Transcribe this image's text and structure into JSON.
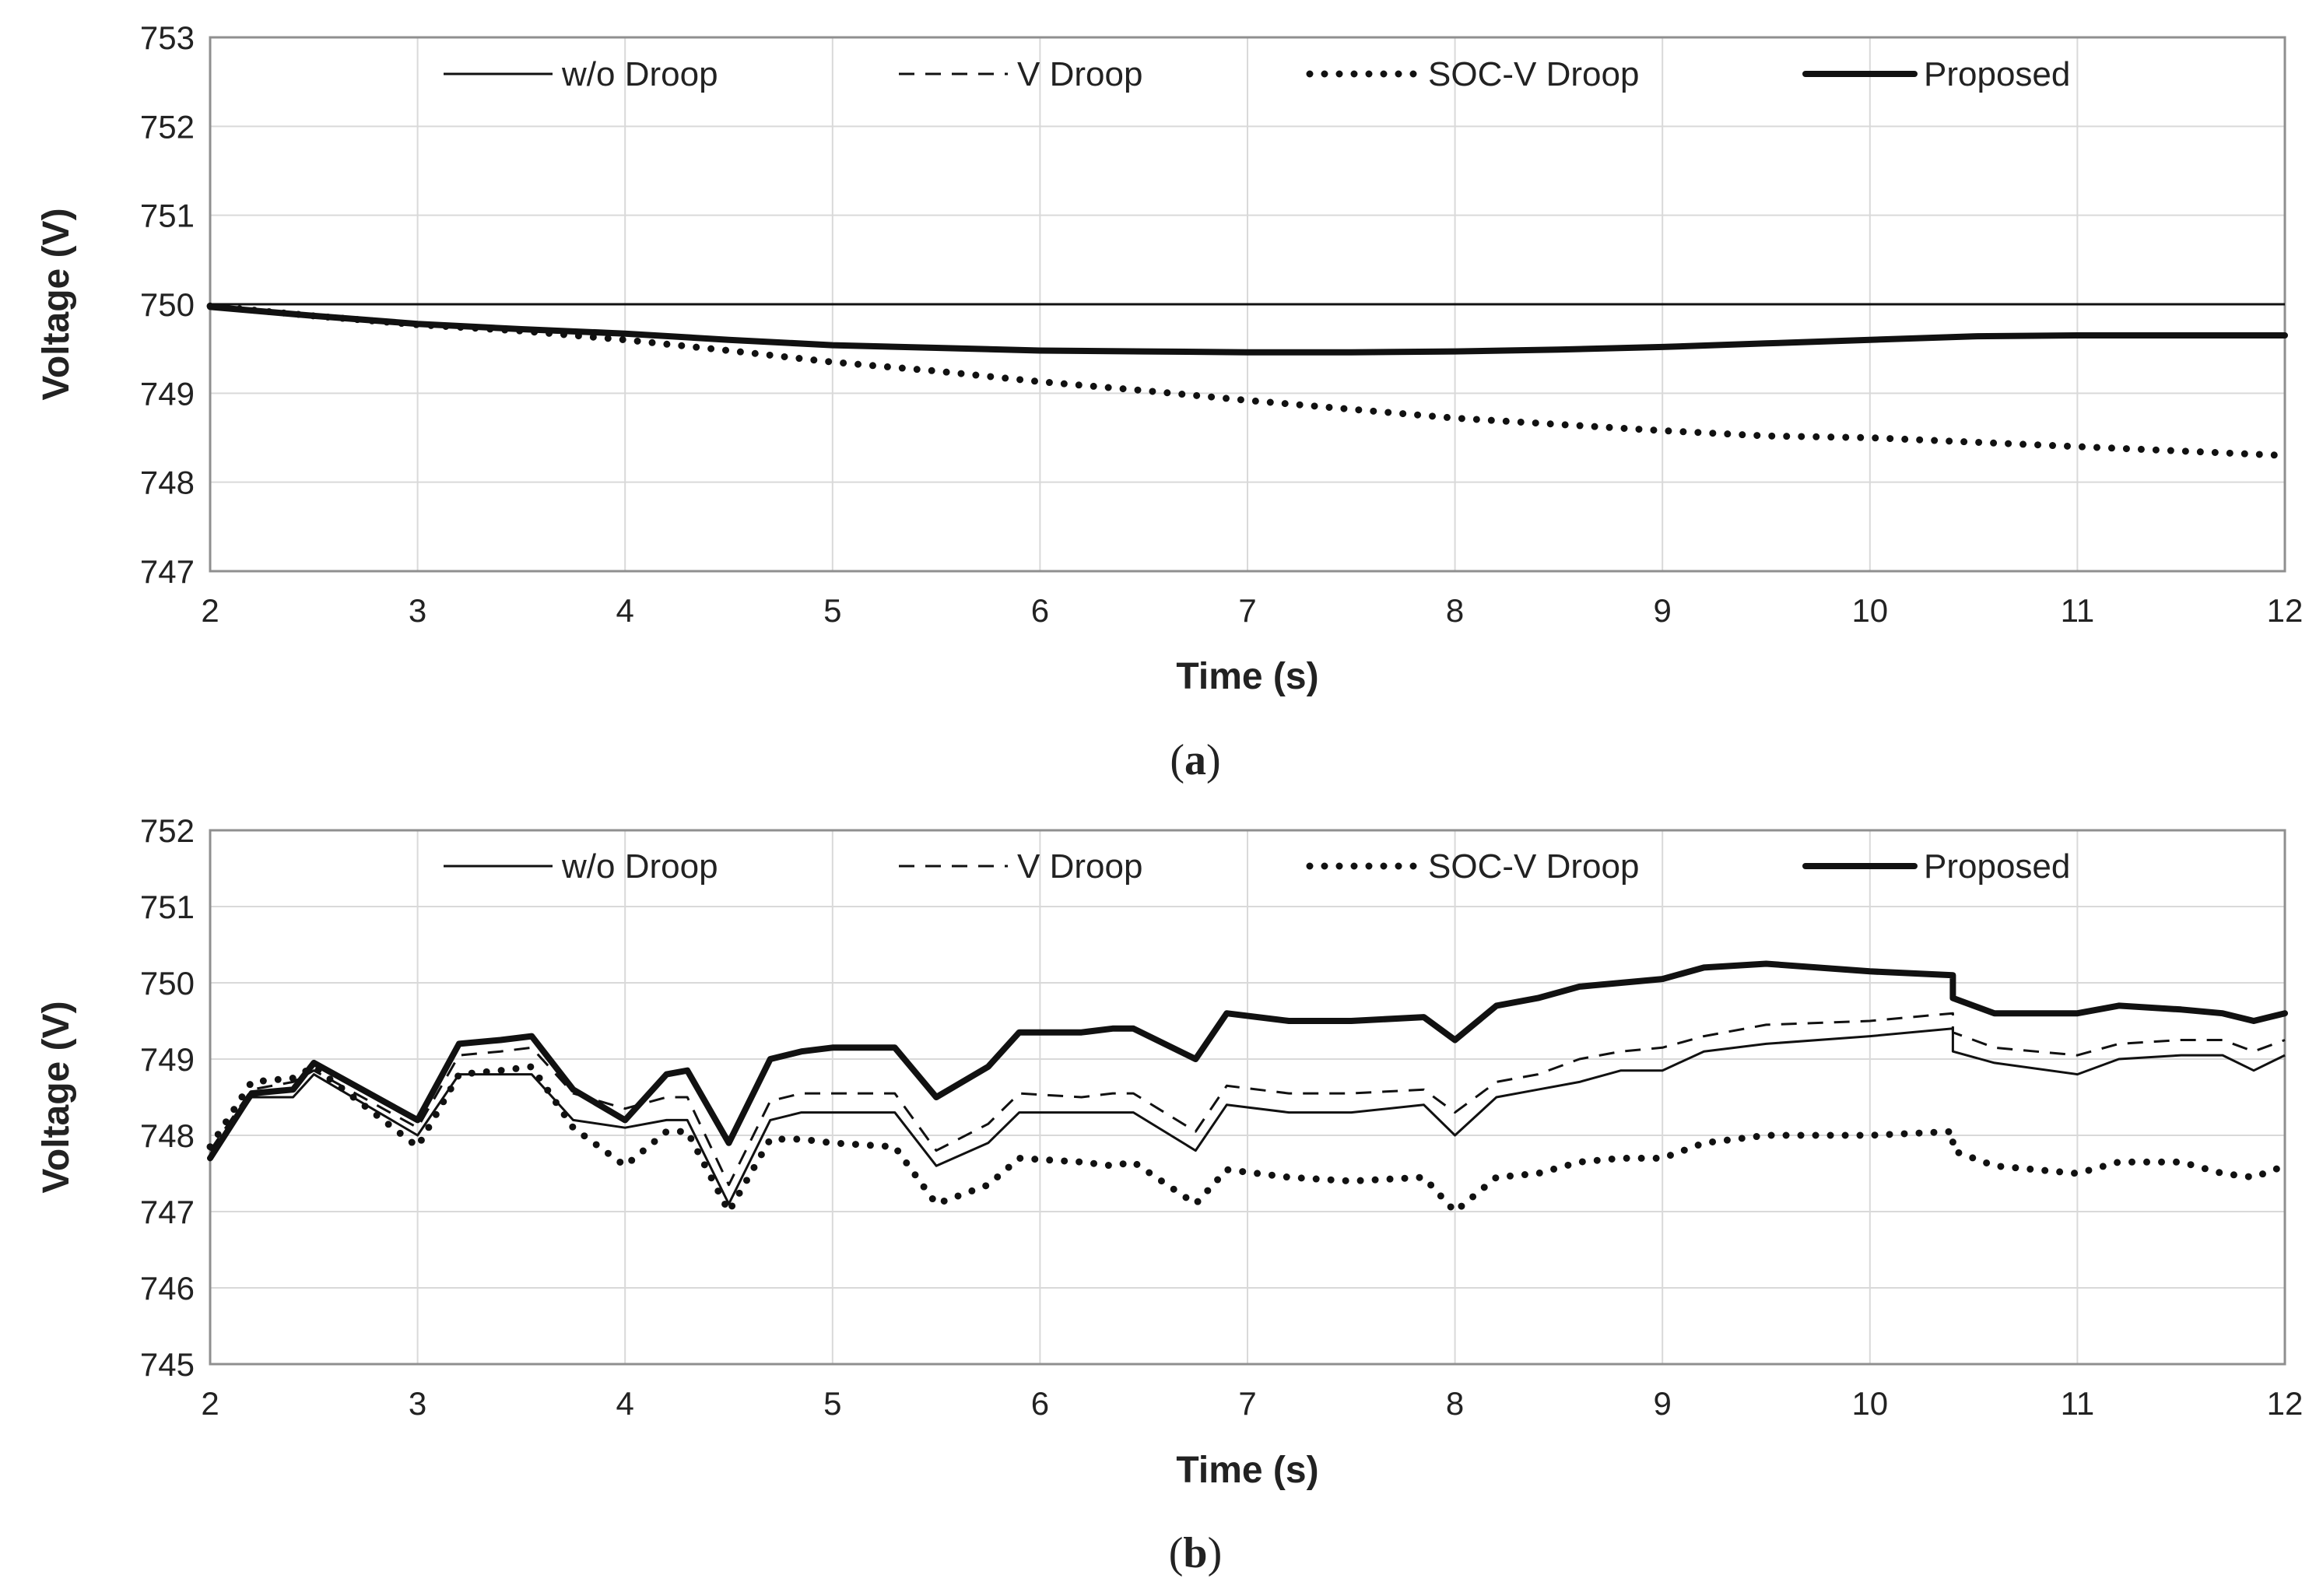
{
  "chart_data": [
    {
      "type": "line",
      "caption_letter": "a",
      "xlabel": "Time (s)",
      "ylabel": "Voltage (V)",
      "xlim": [
        2,
        12
      ],
      "ylim": [
        747,
        753
      ],
      "xticks": [
        "2",
        "3",
        "4",
        "5",
        "6",
        "7",
        "8",
        "9",
        "10",
        "11",
        "12"
      ],
      "yticks": [
        "747",
        "748",
        "749",
        "750",
        "751",
        "752",
        "753"
      ],
      "grid": true,
      "legend_position": "top",
      "series": [
        {
          "name": "w/o Droop",
          "style": "thin",
          "x": [
            2,
            12
          ],
          "y": [
            750.0,
            750.0
          ]
        },
        {
          "name": "V Droop",
          "style": "dashed",
          "x": [
            2,
            2.5,
            3,
            3.5,
            4,
            4.5,
            5,
            5.5,
            6,
            6.5,
            7,
            7.5,
            8,
            8.5,
            9,
            9.5,
            10,
            10.5,
            11,
            11.5,
            12
          ],
          "y": [
            749.97,
            749.87,
            749.78,
            749.72,
            749.67,
            749.6,
            749.54,
            749.51,
            749.48,
            749.47,
            749.46,
            749.46,
            749.47,
            749.49,
            749.52,
            749.56,
            749.6,
            749.64,
            749.65,
            749.65,
            749.65
          ]
        },
        {
          "name": "SOC-V Droop",
          "style": "dotted",
          "x": [
            2,
            2.5,
            3,
            3.5,
            4,
            4.5,
            5,
            5.5,
            6,
            6.5,
            7,
            7.5,
            8,
            8.5,
            9,
            9.5,
            10,
            10.5,
            11,
            11.5,
            12
          ],
          "y": [
            749.98,
            749.87,
            749.77,
            749.7,
            749.6,
            749.48,
            749.35,
            749.25,
            749.13,
            749.03,
            748.92,
            748.82,
            748.72,
            748.65,
            748.58,
            748.52,
            748.5,
            748.45,
            748.4,
            748.35,
            748.3
          ]
        },
        {
          "name": "Proposed",
          "style": "thick",
          "x": [
            2,
            2.5,
            3,
            3.5,
            4,
            4.5,
            5,
            5.5,
            6,
            6.5,
            7,
            7.5,
            8,
            8.5,
            9,
            9.5,
            10,
            10.5,
            11,
            11.5,
            12
          ],
          "y": [
            749.97,
            749.87,
            749.78,
            749.72,
            749.67,
            749.6,
            749.54,
            749.51,
            749.48,
            749.47,
            749.46,
            749.46,
            749.47,
            749.49,
            749.52,
            749.56,
            749.6,
            749.64,
            749.65,
            749.65,
            749.65
          ]
        }
      ]
    },
    {
      "type": "line",
      "caption_letter": "b",
      "xlabel": "Time (s)",
      "ylabel": "Voltage (V)",
      "xlim": [
        2,
        12
      ],
      "ylim": [
        745,
        752
      ],
      "xticks": [
        "2",
        "3",
        "4",
        "5",
        "6",
        "7",
        "8",
        "9",
        "10",
        "11",
        "12"
      ],
      "yticks": [
        "745",
        "746",
        "747",
        "748",
        "749",
        "750",
        "751",
        "752"
      ],
      "grid": true,
      "legend_position": "top",
      "series": [
        {
          "name": "w/o Droop",
          "style": "thin",
          "x": [
            2,
            2.2,
            2.4,
            2.5,
            3,
            3.2,
            3.4,
            3.55,
            3.75,
            4,
            4.2,
            4.3,
            4.5,
            4.7,
            4.85,
            5,
            5.3,
            5.3,
            5.5,
            5.75,
            5.9,
            6.2,
            6.35,
            6.45,
            6.75,
            6.9,
            7.2,
            7.5,
            7.85,
            8,
            8.2,
            8.4,
            8.6,
            8.8,
            9,
            9.2,
            9.5,
            10,
            10.4,
            10.4,
            10.6,
            11,
            11.2,
            11.5,
            11.7,
            11.85,
            12
          ],
          "y": [
            747.7,
            748.5,
            748.5,
            748.8,
            748.0,
            748.8,
            748.8,
            748.8,
            748.2,
            748.1,
            748.2,
            748.2,
            747.1,
            748.2,
            748.3,
            748.3,
            748.3,
            748.3,
            747.6,
            747.9,
            748.3,
            748.3,
            748.3,
            748.3,
            747.8,
            748.4,
            748.3,
            748.3,
            748.4,
            748.0,
            748.5,
            748.6,
            748.7,
            748.85,
            748.85,
            749.1,
            749.2,
            749.3,
            749.4,
            749.1,
            748.95,
            748.8,
            749.0,
            749.05,
            749.05,
            748.85,
            749.05
          ]
        },
        {
          "name": "V Droop",
          "style": "dashed",
          "x": [
            2,
            2.2,
            2.4,
            2.5,
            3,
            3.2,
            3.4,
            3.55,
            3.75,
            4,
            4.2,
            4.3,
            4.5,
            4.7,
            4.85,
            5,
            5.3,
            5.3,
            5.5,
            5.75,
            5.9,
            6.2,
            6.35,
            6.45,
            6.75,
            6.9,
            7.2,
            7.5,
            7.85,
            8,
            8.2,
            8.4,
            8.6,
            8.8,
            9,
            9.2,
            9.5,
            10,
            10.4,
            10.4,
            10.6,
            11,
            11.2,
            11.5,
            11.7,
            11.85,
            12
          ],
          "y": [
            747.8,
            748.6,
            748.7,
            748.85,
            748.1,
            749.05,
            749.1,
            749.15,
            748.55,
            748.35,
            748.5,
            748.5,
            747.35,
            748.45,
            748.55,
            748.55,
            748.55,
            748.55,
            747.8,
            748.15,
            748.55,
            748.5,
            748.55,
            748.55,
            748.05,
            748.65,
            748.55,
            748.55,
            748.6,
            748.3,
            748.7,
            748.8,
            749.0,
            749.1,
            749.15,
            749.3,
            749.45,
            749.5,
            749.6,
            749.35,
            749.15,
            749.05,
            749.2,
            749.25,
            749.25,
            749.1,
            749.25
          ]
        },
        {
          "name": "SOC-V Droop",
          "style": "dotted",
          "x": [
            2,
            2.2,
            2.4,
            2.5,
            3,
            3.2,
            3.4,
            3.55,
            3.75,
            4,
            4.2,
            4.3,
            4.5,
            4.7,
            4.85,
            5,
            5.3,
            5.3,
            5.5,
            5.75,
            5.9,
            6.2,
            6.35,
            6.45,
            6.75,
            6.9,
            7.2,
            7.5,
            7.85,
            8,
            8.2,
            8.4,
            8.6,
            8.8,
            9,
            9.2,
            9.5,
            10,
            10.4,
            10.4,
            10.6,
            11,
            11.2,
            11.5,
            11.7,
            11.85,
            12
          ],
          "y": [
            747.85,
            748.7,
            748.75,
            748.9,
            747.85,
            748.8,
            748.85,
            748.9,
            748.1,
            747.6,
            748.05,
            748.05,
            747.0,
            747.95,
            747.95,
            747.9,
            747.85,
            747.85,
            747.1,
            747.35,
            747.7,
            747.65,
            747.6,
            747.65,
            747.1,
            747.55,
            747.45,
            747.4,
            747.45,
            747.0,
            747.45,
            747.5,
            747.65,
            747.7,
            747.7,
            747.9,
            748.0,
            748.0,
            748.05,
            747.8,
            747.6,
            747.5,
            747.65,
            747.65,
            747.5,
            747.45,
            747.6
          ]
        },
        {
          "name": "Proposed",
          "style": "thick",
          "x": [
            2,
            2.2,
            2.4,
            2.5,
            3,
            3.2,
            3.4,
            3.55,
            3.75,
            4,
            4.2,
            4.3,
            4.5,
            4.7,
            4.85,
            5,
            5.3,
            5.3,
            5.5,
            5.75,
            5.9,
            6.2,
            6.35,
            6.45,
            6.75,
            6.9,
            7.2,
            7.5,
            7.85,
            8,
            8.2,
            8.4,
            8.6,
            8.8,
            9,
            9.2,
            9.5,
            10,
            10.4,
            10.4,
            10.6,
            11,
            11.2,
            11.5,
            11.7,
            11.85,
            12
          ],
          "y": [
            747.7,
            748.55,
            748.6,
            748.95,
            748.2,
            749.2,
            749.25,
            749.3,
            748.6,
            748.2,
            748.8,
            748.85,
            747.9,
            749.0,
            749.1,
            749.15,
            749.15,
            749.15,
            748.5,
            748.9,
            749.35,
            749.35,
            749.4,
            749.4,
            749.0,
            749.6,
            749.5,
            749.5,
            749.55,
            749.25,
            749.7,
            749.8,
            749.95,
            750.0,
            750.05,
            750.2,
            750.25,
            750.15,
            750.1,
            749.8,
            749.6,
            749.6,
            749.7,
            749.65,
            749.6,
            749.5,
            749.6
          ]
        }
      ]
    }
  ]
}
